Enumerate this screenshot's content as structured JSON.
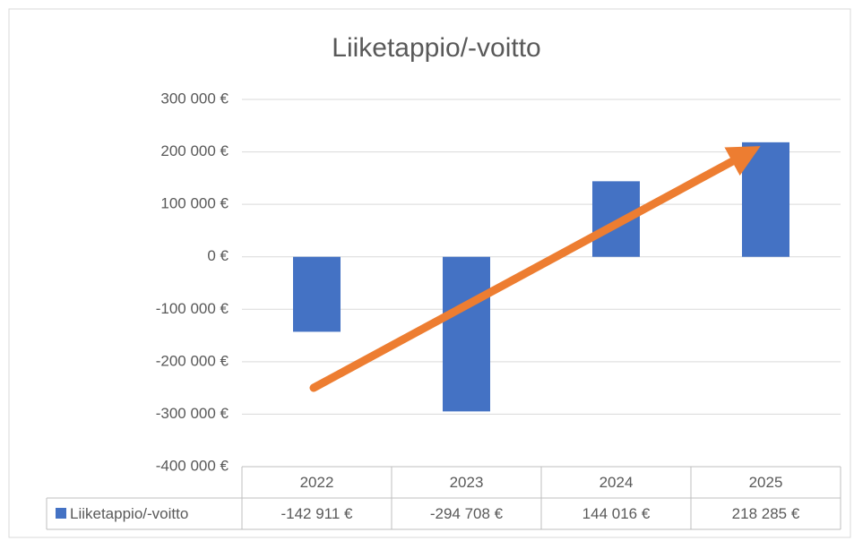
{
  "chart_data": {
    "type": "bar",
    "title": "Liiketappio/-voitto",
    "categories": [
      "2022",
      "2023",
      "2024",
      "2025"
    ],
    "series": [
      {
        "name": "Liiketappio/-voitto",
        "color": "#4472c4",
        "values": [
          -142911,
          -294708,
          144016,
          218285
        ],
        "value_labels": [
          "-142 911 €",
          "-294 708 €",
          "144 016 €",
          "218 285 €"
        ]
      }
    ],
    "ylim": [
      -400000,
      300000
    ],
    "yticks": [
      {
        "value": -400000,
        "label": "-400 000 €"
      },
      {
        "value": -300000,
        "label": "-300 000 €"
      },
      {
        "value": -200000,
        "label": "-200 000 €"
      },
      {
        "value": -100000,
        "label": "-100 000 €"
      },
      {
        "value": 0,
        "label": "0 €"
      },
      {
        "value": 100000,
        "label": "100 000 €"
      },
      {
        "value": 200000,
        "label": "200 000 €"
      },
      {
        "value": 300000,
        "label": "300 000 €"
      }
    ],
    "grid": true,
    "data_table": true
  }
}
